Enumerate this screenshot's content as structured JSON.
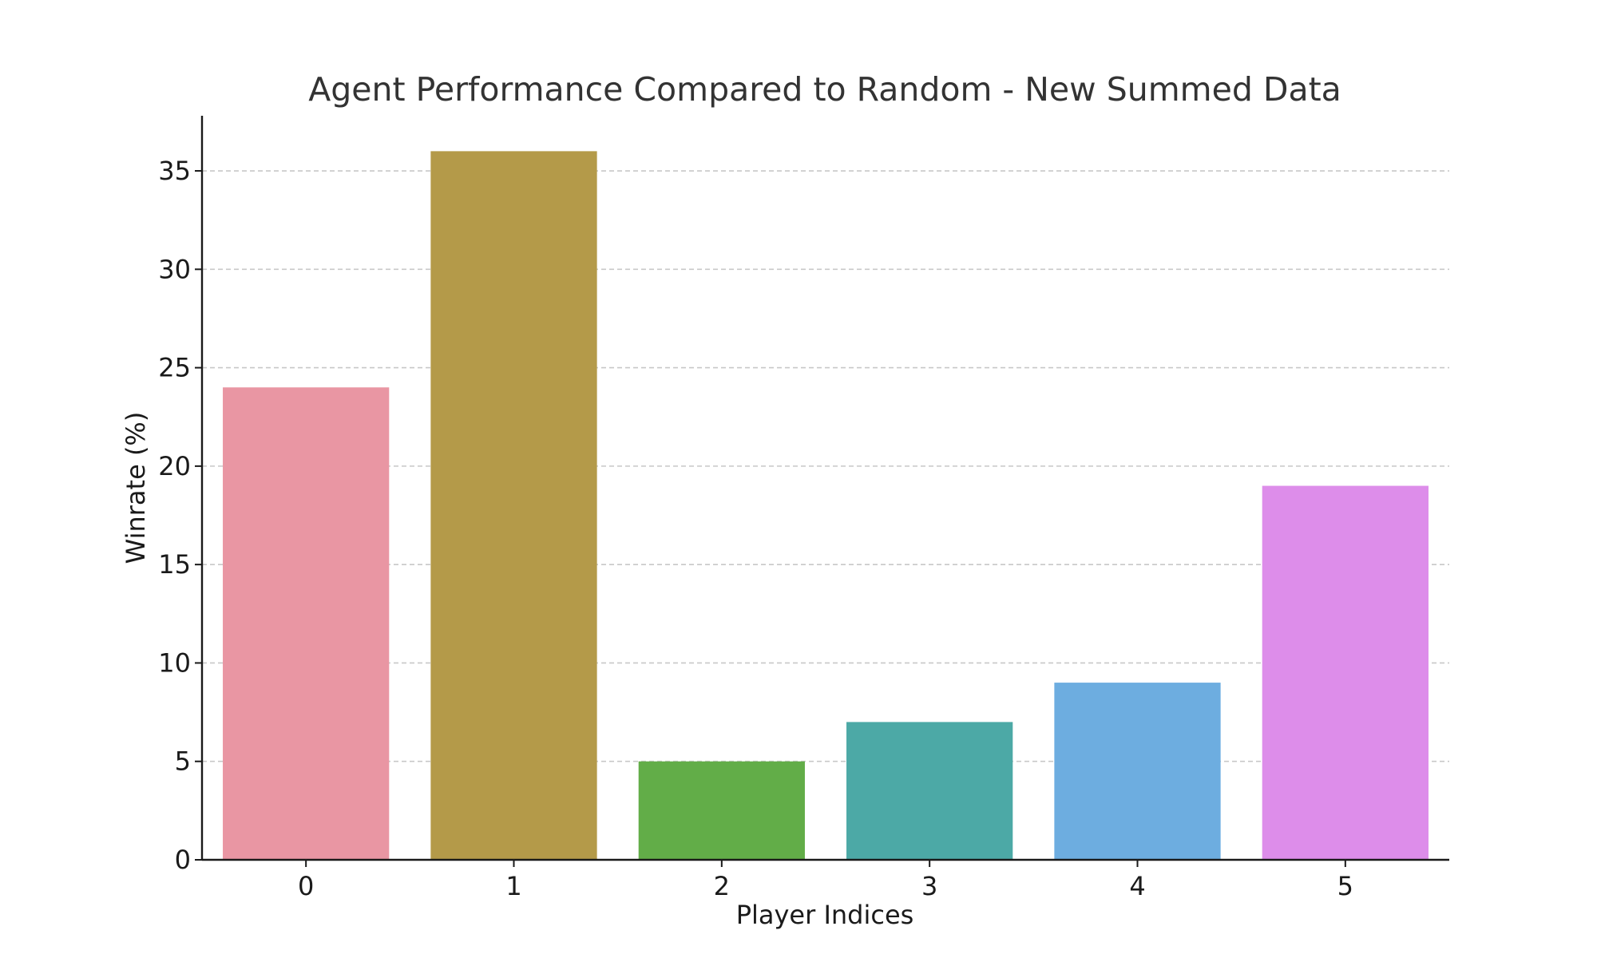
{
  "chart_data": {
    "type": "bar",
    "title": "Agent Performance Compared to Random - New Summed Data",
    "xlabel": "Player Indices",
    "ylabel": "Winrate (%)",
    "categories": [
      "0",
      "1",
      "2",
      "3",
      "4",
      "5"
    ],
    "values": [
      24,
      36,
      5,
      7,
      9,
      19
    ],
    "colors": [
      "#e996a3",
      "#b49a49",
      "#62ad48",
      "#4ca9a6",
      "#6dade0",
      "#dd8dea"
    ],
    "ylim": [
      0,
      37.8
    ],
    "yticks": [
      0,
      5,
      10,
      15,
      20,
      25,
      30,
      35
    ],
    "grid": "y-dashed",
    "legend": "none"
  }
}
